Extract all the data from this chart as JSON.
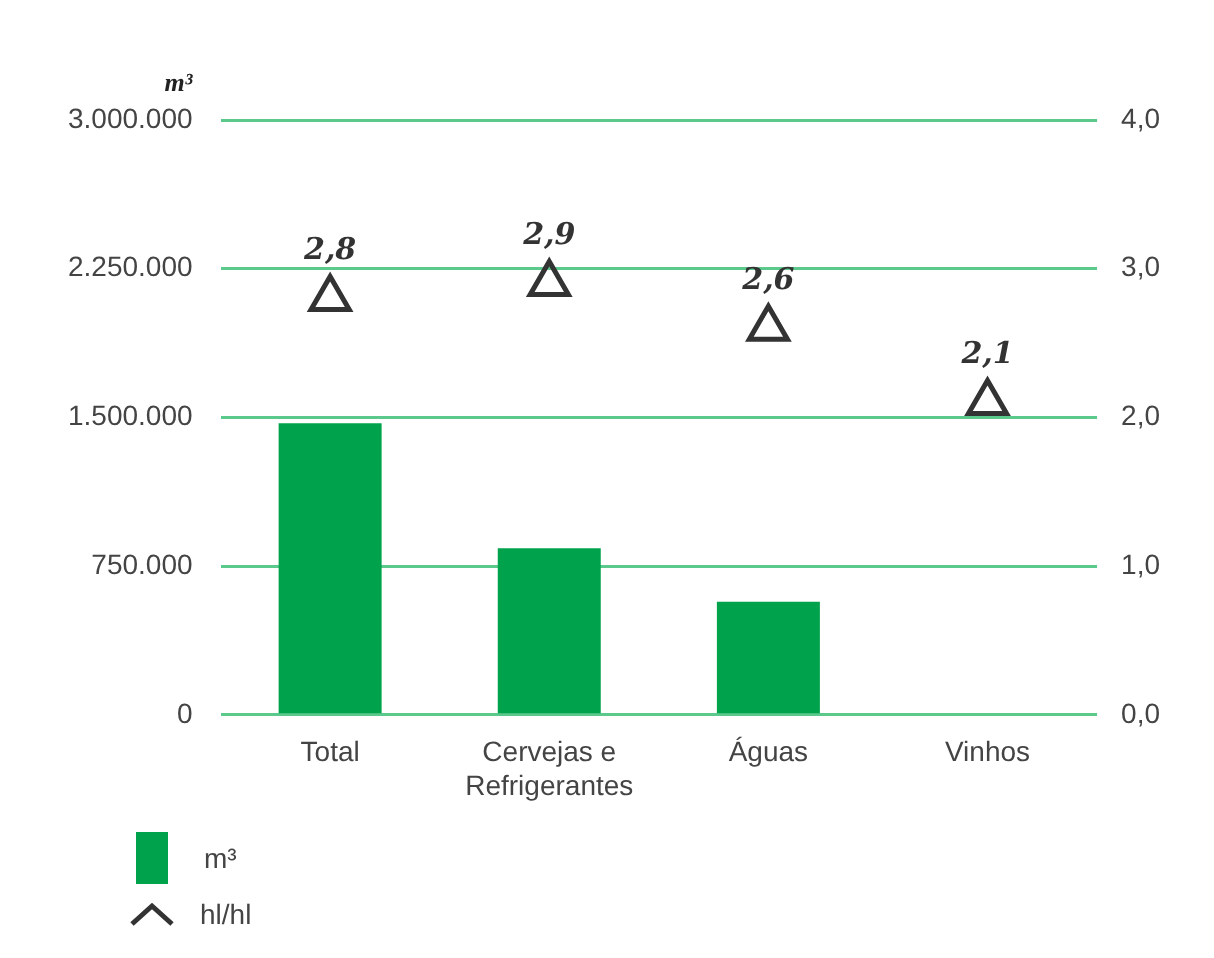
{
  "chart_data": {
    "type": "bar",
    "ylabel": "m³",
    "categories": [
      "Total",
      "Cervejas e Refrigerantes",
      "Águas",
      "Vinhos"
    ],
    "series": [
      {
        "name": "m³",
        "color": "#00a34c",
        "values": [
          1470000,
          840000,
          570000,
          0
        ]
      },
      {
        "name": "hl/hl",
        "type": "scatter",
        "axis": "y2",
        "color": "#333333",
        "marker": "triangle",
        "values": [
          2.8,
          2.9,
          2.6,
          2.1
        ],
        "value_labels": [
          "2,8",
          "2,9",
          "2,6",
          "2,1"
        ]
      }
    ],
    "ylim": [
      0,
      3000000
    ],
    "yticks": [
      {
        "value": 0,
        "label": "0"
      },
      {
        "value": 750000,
        "label": "750.000"
      },
      {
        "value": 1500000,
        "label": "1.500.000"
      },
      {
        "value": 2250000,
        "label": "2.250.000"
      },
      {
        "value": 3000000,
        "label": "3.000.000"
      }
    ],
    "y2lim": [
      0,
      4
    ],
    "y2ticks": [
      {
        "value": 0,
        "label": "0,0"
      },
      {
        "value": 1,
        "label": "1,0"
      },
      {
        "value": 2,
        "label": "2,0"
      },
      {
        "value": 3,
        "label": "3,0"
      },
      {
        "value": 4,
        "label": "4,0"
      }
    ],
    "grid": "y",
    "legend": "bottom left"
  }
}
